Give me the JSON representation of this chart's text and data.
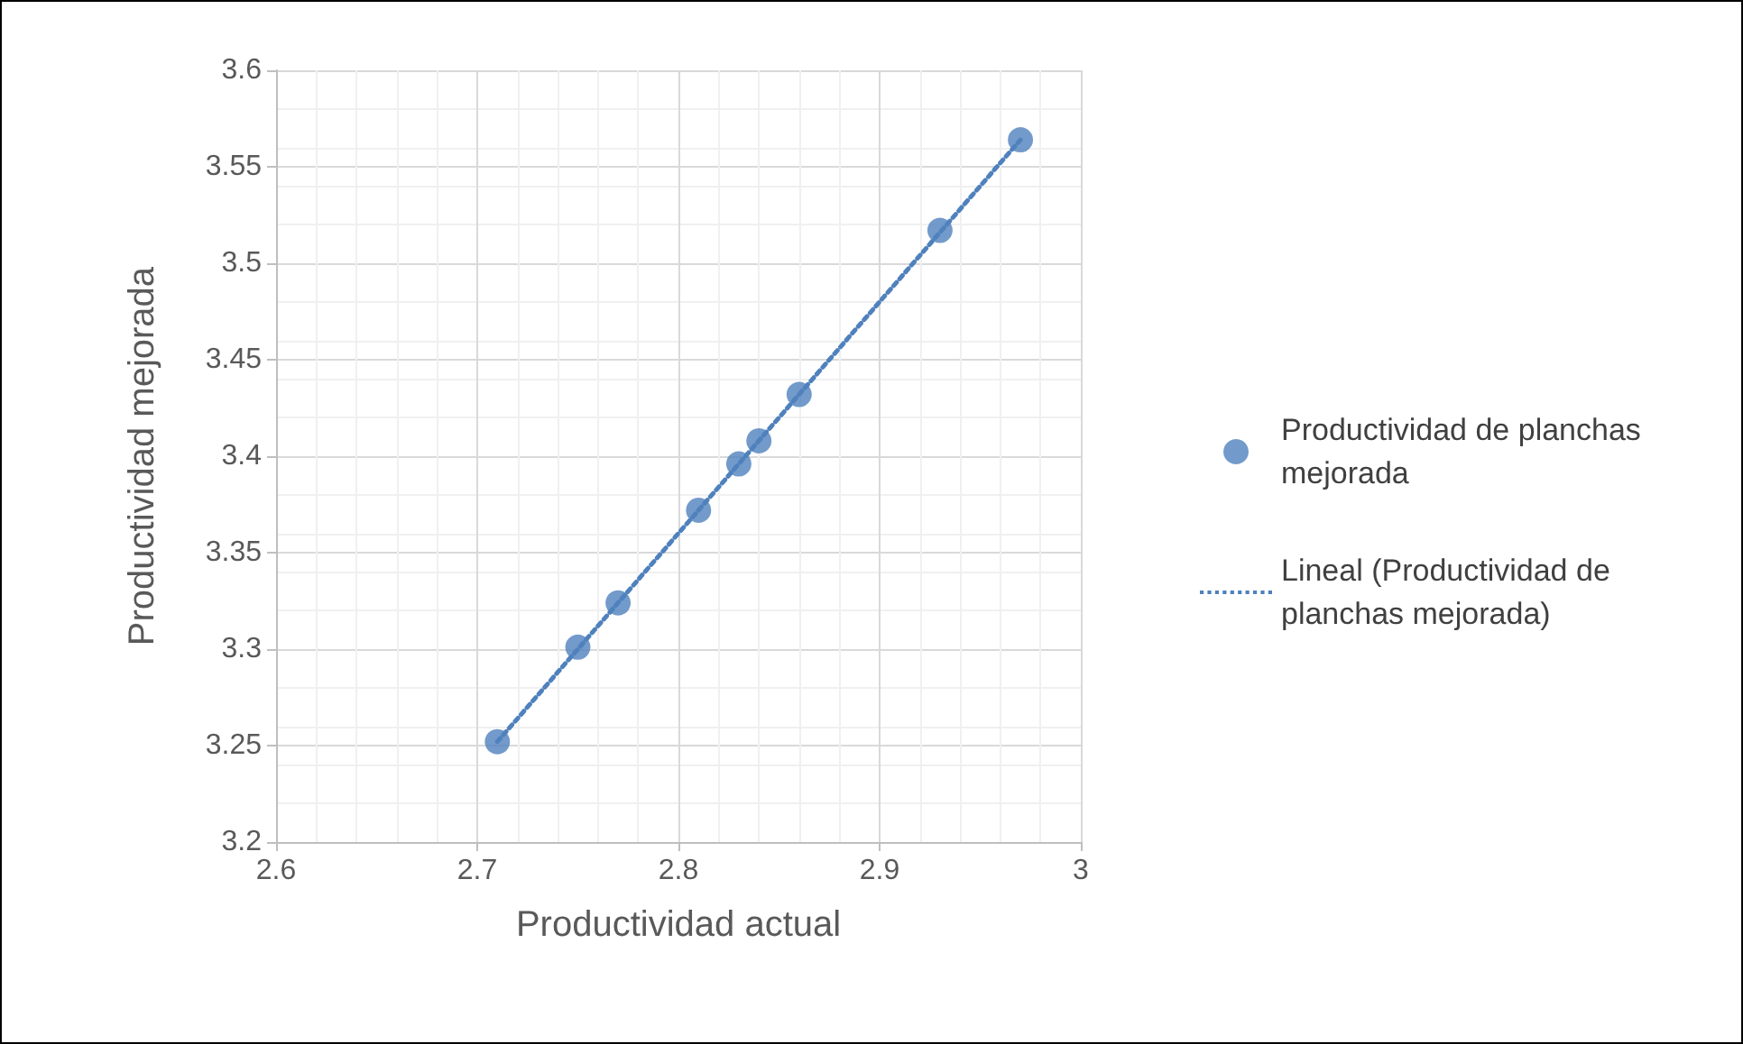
{
  "chart_data": {
    "type": "scatter",
    "xlabel": "Productividad actual",
    "ylabel": "Productividad mejorada",
    "series": [
      {
        "name": "Productividad de planchas mejorada",
        "color": "#4f81bd",
        "marker": "circle",
        "x": [
          2.71,
          2.75,
          2.77,
          2.81,
          2.83,
          2.84,
          2.86,
          2.93,
          2.97
        ],
        "values": [
          3.252,
          3.301,
          3.324,
          3.372,
          3.396,
          3.408,
          3.432,
          3.517,
          3.564
        ]
      },
      {
        "name": "Lineal (Productividad de planchas mejorada)",
        "type": "line",
        "color": "#4f81bd",
        "marker": "none",
        "line_style": "dotted",
        "x": [
          2.71,
          2.97
        ],
        "values": [
          3.252,
          3.564
        ]
      }
    ],
    "xlim": [
      2.6,
      3
    ],
    "xticks": [
      2.6,
      2.7,
      2.8,
      2.9,
      3
    ],
    "ylim": [
      3.2,
      3.6
    ],
    "yticks": [
      3.2,
      3.25,
      3.3,
      3.35,
      3.4,
      3.45,
      3.5,
      3.55,
      3.6
    ],
    "grid": true,
    "legend": "right"
  }
}
